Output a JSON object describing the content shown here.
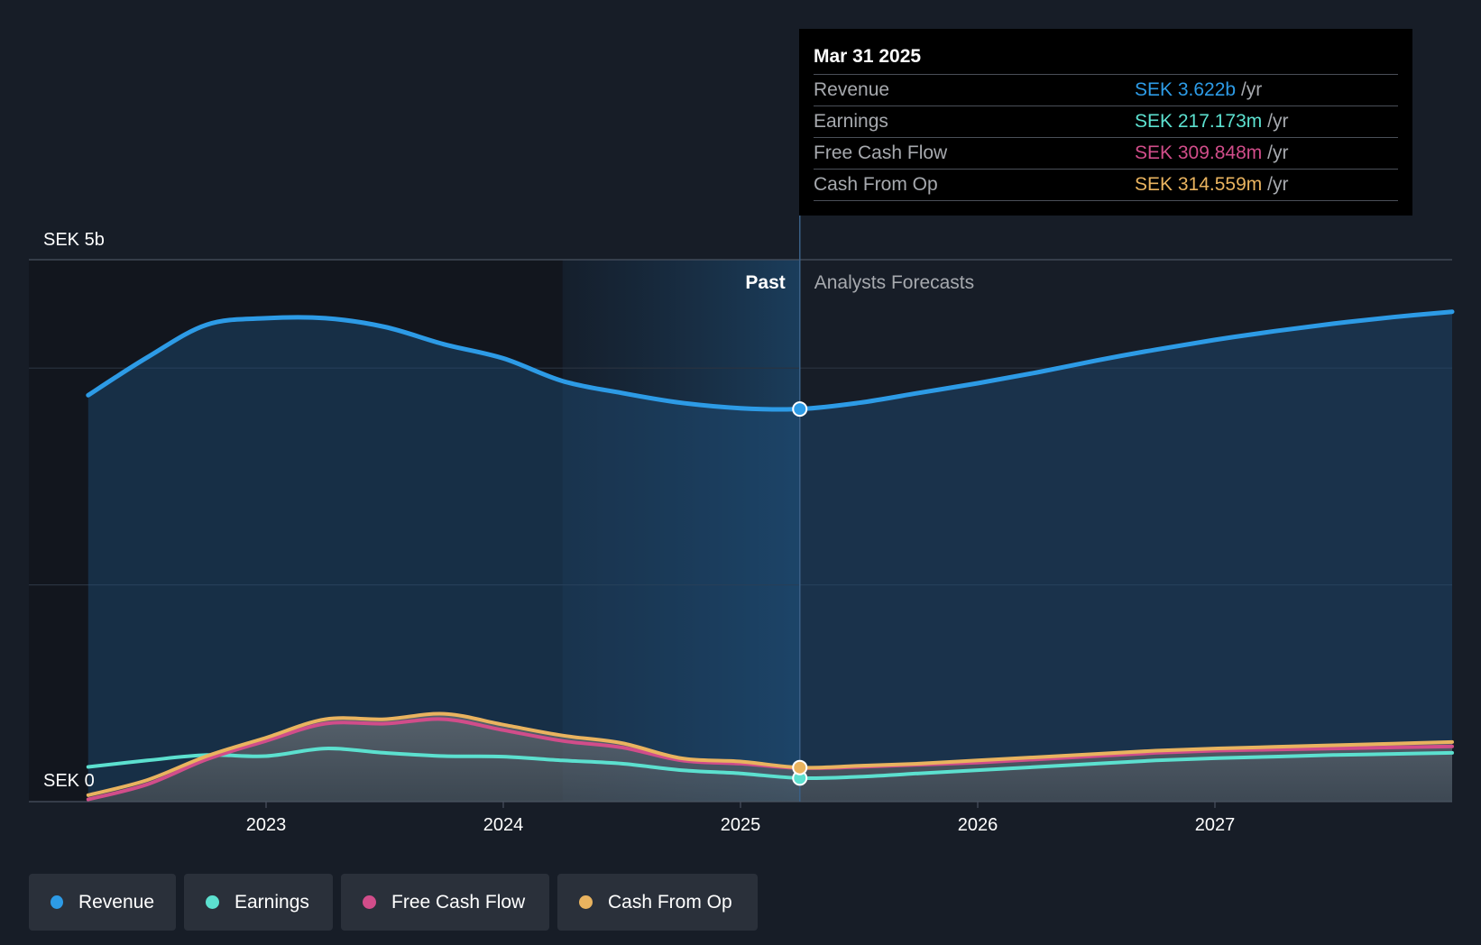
{
  "chart_data": {
    "type": "area",
    "y_unit_label_top": "SEK 5b",
    "y_unit_label_bottom": "SEK 0",
    "ylim": [
      0,
      5000
    ],
    "x_ticks": [
      "2023",
      "2024",
      "2025",
      "2026",
      "2027"
    ],
    "past_label": "Past",
    "forecast_label": "Analysts Forecasts",
    "series": [
      {
        "name": "Revenue",
        "color": "#2d9be6",
        "x": [
          2022.25,
          2022.5,
          2022.75,
          2023.0,
          2023.25,
          2023.5,
          2023.75,
          2024.0,
          2024.25,
          2024.5,
          2024.75,
          2025.0,
          2025.25,
          2025.5,
          2025.75,
          2026.0,
          2026.25,
          2026.5,
          2026.75,
          2027.0,
          2027.25,
          2027.5,
          2027.75,
          2028.0
        ],
        "y": [
          3750,
          4100,
          4400,
          4460,
          4460,
          4380,
          4220,
          4090,
          3880,
          3770,
          3680,
          3630,
          3622,
          3680,
          3770,
          3860,
          3960,
          4070,
          4170,
          4260,
          4340,
          4410,
          4470,
          4520
        ]
      },
      {
        "name": "Earnings",
        "color": "#5ce0cf",
        "x": [
          2022.25,
          2022.5,
          2022.75,
          2023.0,
          2023.25,
          2023.5,
          2023.75,
          2024.0,
          2024.25,
          2024.5,
          2024.75,
          2025.0,
          2025.25,
          2025.5,
          2025.75,
          2026.0,
          2026.25,
          2026.5,
          2026.75,
          2027.0,
          2027.25,
          2027.5,
          2027.75,
          2028.0
        ],
        "y": [
          320,
          380,
          430,
          420,
          490,
          450,
          420,
          415,
          380,
          350,
          290,
          260,
          217,
          230,
          260,
          290,
          320,
          350,
          380,
          400,
          415,
          430,
          440,
          450
        ]
      },
      {
        "name": "Free Cash Flow",
        "color": "#d14d8a",
        "x": [
          2022.25,
          2022.5,
          2022.75,
          2023.0,
          2023.25,
          2023.5,
          2023.75,
          2024.0,
          2024.25,
          2024.5,
          2024.75,
          2025.0,
          2025.25,
          2025.5,
          2025.75,
          2026.0,
          2026.25,
          2026.5,
          2026.75,
          2027.0,
          2027.25,
          2027.5,
          2027.75,
          2028.0
        ],
        "y": [
          20,
          160,
          390,
          560,
          720,
          720,
          760,
          660,
          560,
          500,
          380,
          350,
          309.848,
          320,
          340,
          360,
          390,
          420,
          450,
          470,
          480,
          490,
          500,
          510
        ]
      },
      {
        "name": "Cash From Op",
        "color": "#e9b35f",
        "x": [
          2022.25,
          2022.5,
          2022.75,
          2023.0,
          2023.25,
          2023.5,
          2023.75,
          2024.0,
          2024.25,
          2024.5,
          2024.75,
          2025.0,
          2025.25,
          2025.5,
          2025.75,
          2026.0,
          2026.25,
          2026.5,
          2026.75,
          2027.0,
          2027.25,
          2027.5,
          2027.75,
          2028.0
        ],
        "y": [
          60,
          200,
          420,
          590,
          760,
          760,
          810,
          710,
          610,
          540,
          400,
          370,
          314.559,
          330,
          350,
          380,
          410,
          440,
          470,
          490,
          505,
          520,
          535,
          550
        ]
      }
    ],
    "present_marker_x": 2025.25,
    "shaded_past_start_x": 2024.25
  },
  "tooltip": {
    "date": "Mar 31 2025",
    "rows": [
      {
        "label": "Revenue",
        "value": "SEK 3.622b",
        "unit": "/yr",
        "color": "#2d9be6"
      },
      {
        "label": "Earnings",
        "value": "SEK 217.173m",
        "unit": "/yr",
        "color": "#5ce0cf"
      },
      {
        "label": "Free Cash Flow",
        "value": "SEK 309.848m",
        "unit": "/yr",
        "color": "#d14d8a"
      },
      {
        "label": "Cash From Op",
        "value": "SEK 314.559m",
        "unit": "/yr",
        "color": "#e9b35f"
      }
    ]
  },
  "legend": [
    {
      "label": "Revenue",
      "color": "#2d9be6"
    },
    {
      "label": "Earnings",
      "color": "#5ce0cf"
    },
    {
      "label": "Free Cash Flow",
      "color": "#d14d8a"
    },
    {
      "label": "Cash From Op",
      "color": "#e9b35f"
    }
  ]
}
